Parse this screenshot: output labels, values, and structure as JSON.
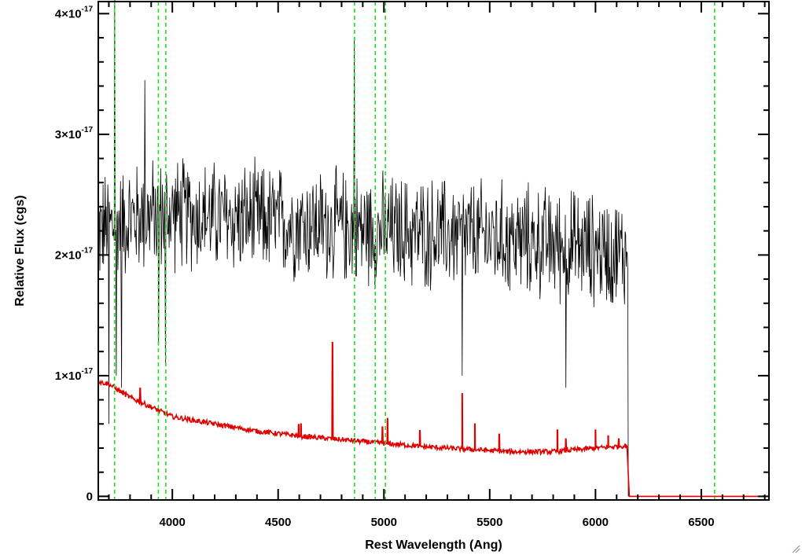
{
  "chart_data": {
    "type": "line",
    "title": "",
    "xlabel": "Rest Wavelength (Ang)",
    "ylabel": "Relative Flux (cgs)",
    "xlim": [
      3650,
      6820
    ],
    "ylim": [
      -3e-19,
      4.1e-17
    ],
    "xticks": [
      {
        "value": 4000,
        "label": "4000"
      },
      {
        "value": 4500,
        "label": "4500"
      },
      {
        "value": 5000,
        "label": "5000"
      },
      {
        "value": 5500,
        "label": "5500"
      },
      {
        "value": 6000,
        "label": "6000"
      },
      {
        "value": 6500,
        "label": "6500"
      }
    ],
    "yticks": [
      {
        "value": 0,
        "mantissa": "0",
        "exponent": ""
      },
      {
        "value": 1e-17,
        "mantissa": "1×10",
        "exponent": "-17"
      },
      {
        "value": 2e-17,
        "mantissa": "2×10",
        "exponent": "-17"
      },
      {
        "value": 3e-17,
        "mantissa": "3×10",
        "exponent": "-17"
      },
      {
        "value": 4e-17,
        "mantissa": "4×10",
        "exponent": "-17"
      }
    ],
    "grid": false,
    "series": [
      {
        "color": "#000000",
        "style": "noisy-observed-spectrum",
        "x_range": [
          3650,
          6155
        ],
        "baseline": [
          [
            3650,
            2.2e-17
          ],
          [
            3800,
            2.3e-17
          ],
          [
            4000,
            2.35e-17
          ],
          [
            4300,
            2.3e-17
          ],
          [
            4700,
            2.25e-17
          ],
          [
            5000,
            2.2e-17
          ],
          [
            5500,
            2.15e-17
          ],
          [
            6000,
            2.05e-17
          ],
          [
            6155,
            2e-17
          ]
        ],
        "noise_amplitude": 5.5e-18,
        "features": [
          [
            3727,
            4.2e-17
          ],
          [
            3700,
            6e-18
          ],
          [
            3735,
            1e-17
          ],
          [
            3760,
            9e-18
          ],
          [
            3870,
            3.45e-17
          ],
          [
            3935,
            1.25e-17
          ],
          [
            3968,
            1.1e-17
          ],
          [
            4861,
            3.8e-17
          ],
          [
            5370,
            1e-17
          ],
          [
            5860,
            9e-18
          ],
          [
            6155,
            0.0
          ]
        ]
      },
      {
        "color": "#e00000",
        "style": "model-continuum",
        "points": [
          [
            3650,
            9.5e-18
          ],
          [
            3700,
            9.3e-18
          ],
          [
            3800,
            8.2e-18
          ],
          [
            3900,
            7.4e-18
          ],
          [
            4000,
            6.6e-18
          ],
          [
            4200,
            6e-18
          ],
          [
            4400,
            5.4e-18
          ],
          [
            4600,
            5e-18
          ],
          [
            4800,
            4.7e-18
          ],
          [
            5000,
            4.4e-18
          ],
          [
            5200,
            4.1e-18
          ],
          [
            5400,
            3.9e-18
          ],
          [
            5600,
            3.7e-18
          ],
          [
            5800,
            3.7e-18
          ],
          [
            6000,
            4e-18
          ],
          [
            6150,
            4.2e-18
          ],
          [
            6160,
            0.0
          ],
          [
            6820,
            0.0
          ]
        ],
        "emission_lines": [
          [
            3848,
            9e-18
          ],
          [
            4597,
            6e-18
          ],
          [
            4608,
            6e-18
          ],
          [
            4757,
            1.28e-17
          ],
          [
            4993,
            5.8e-18
          ],
          [
            5017,
            6.5e-18
          ],
          [
            5170,
            5.5e-18
          ],
          [
            5370,
            8.5e-18
          ],
          [
            5430,
            6e-18
          ],
          [
            5545,
            5.2e-18
          ],
          [
            5820,
            5.5e-18
          ],
          [
            5860,
            4.8e-18
          ],
          [
            6000,
            5.5e-18
          ],
          [
            6060,
            5e-18
          ],
          [
            6110,
            4.8e-18
          ]
        ]
      }
    ],
    "reference_lines": {
      "color": "#22dd22",
      "style": "dashed",
      "x": [
        3727,
        3934,
        3969,
        4861,
        4959,
        5007,
        6563
      ]
    }
  }
}
